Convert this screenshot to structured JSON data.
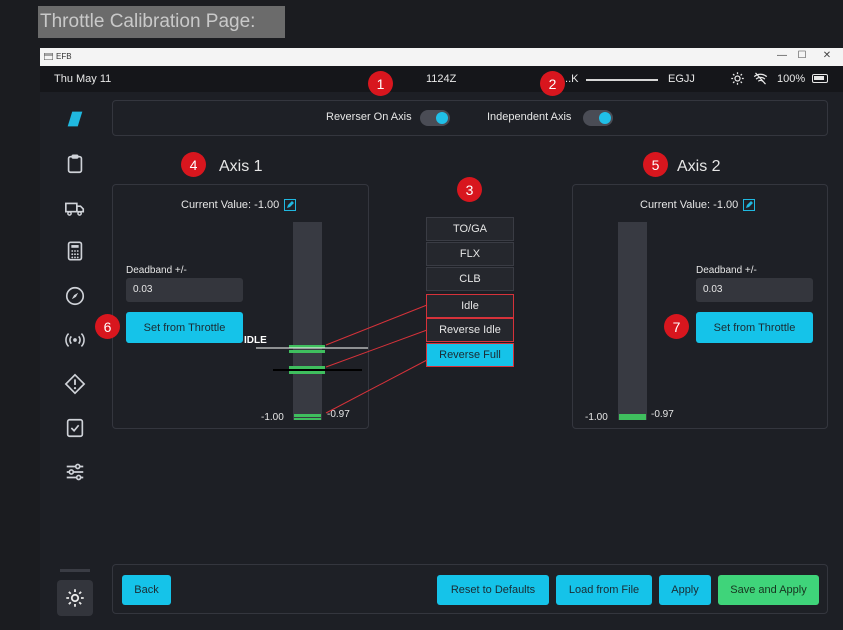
{
  "page_label": "Throttle Calibration Page:",
  "window": {
    "app_name": "EFB",
    "controls": {
      "minimize": "—",
      "maximize": "☐",
      "close": "✕"
    }
  },
  "status": {
    "date": "Thu May 11",
    "time": "1124Z",
    "origin": "...K",
    "destination": "EGJJ",
    "battery": "100%"
  },
  "toggles": {
    "reverser_label": "Reverser On Axis",
    "independent_label": "Independent Axis"
  },
  "axis1": {
    "title": "Axis 1",
    "current_value_label": "Current Value: -1.00",
    "deadband_label": "Deadband +/-",
    "deadband_value": "0.03",
    "set_button": "Set from Throttle",
    "min_label": "-1.00",
    "max_label": "-0.97",
    "idle_label": "IDLE"
  },
  "axis2": {
    "title": "Axis 2",
    "current_value_label": "Current Value: -1.00",
    "deadband_label": "Deadband +/-",
    "deadband_value": "0.03",
    "set_button": "Set from Throttle",
    "min_label": "-1.00",
    "max_label": "-0.97"
  },
  "detents": [
    "TO/GA",
    "FLX",
    "CLB",
    "Idle",
    "Reverse Idle",
    "Reverse Full"
  ],
  "selected_detent": "Reverse Full",
  "footer": {
    "back": "Back",
    "reset": "Reset to Defaults",
    "load": "Load from File",
    "apply": "Apply",
    "save_apply": "Save and Apply"
  },
  "markers": [
    "1",
    "2",
    "3",
    "4",
    "5",
    "6",
    "7"
  ],
  "colors": {
    "accent": "#15c3e9",
    "success": "#3fd47a",
    "marker": "#d8161e",
    "bar_fill": "#3fbf5e"
  }
}
